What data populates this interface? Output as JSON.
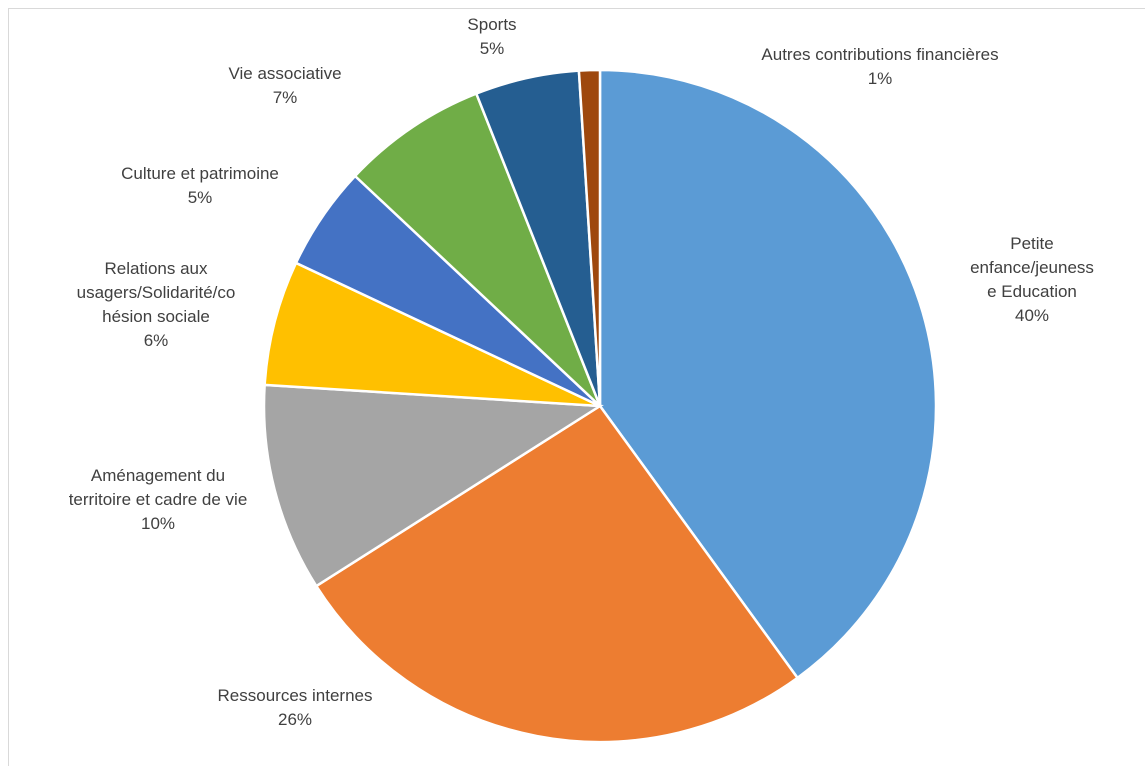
{
  "chart_data": {
    "type": "pie",
    "categories": [
      "Petite enfance/jeunesse Education",
      "Ressources internes",
      "Aménagement du territoire et cadre de vie",
      "Relations aux usagers/Solidarité/cohésion sociale",
      "Culture et patrimoine",
      "Vie associative",
      "Sports",
      "Autres contributions financières"
    ],
    "values": [
      40,
      26,
      10,
      6,
      5,
      7,
      5,
      1
    ],
    "value_labels": [
      "40%",
      "26%",
      "10%",
      "6%",
      "5%",
      "7%",
      "5%",
      "1%"
    ],
    "colors": [
      "#5b9bd5",
      "#ed7d31",
      "#a5a5a5",
      "#ffc000",
      "#4472c4",
      "#70ad47",
      "#255e91",
      "#9e480e"
    ]
  }
}
